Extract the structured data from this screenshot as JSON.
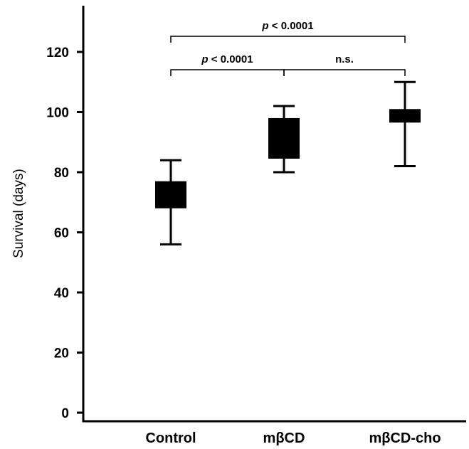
{
  "chart_data": {
    "type": "boxplot",
    "ylabel": "Survival (days)",
    "xlabel": "",
    "ylim": [
      0,
      130
    ],
    "yticks": [
      0,
      20,
      40,
      60,
      80,
      100,
      120
    ],
    "grid": false,
    "categories": [
      "Control",
      "mβCD",
      "mβCD-cho"
    ],
    "boxes": [
      {
        "category": "Control",
        "min": 56,
        "q1": 68,
        "q3": 77,
        "max": 84
      },
      {
        "category": "mβCD",
        "min": 80,
        "q1": 84.5,
        "q3": 98,
        "max": 102
      },
      {
        "category": "mβCD-cho",
        "min": 82,
        "q1": 96.5,
        "q3": 101,
        "max": 110
      }
    ],
    "significance": [
      {
        "from": "Control",
        "to": "mβCD-cho",
        "p_prefix": "p",
        "label": " < 0.0001"
      },
      {
        "from": "Control",
        "to": "mβCD",
        "p_prefix": "p",
        "label": " < 0.0001"
      },
      {
        "from": "mβCD",
        "to": "mβCD-cho",
        "p_prefix": "",
        "label": "n.s."
      }
    ]
  }
}
